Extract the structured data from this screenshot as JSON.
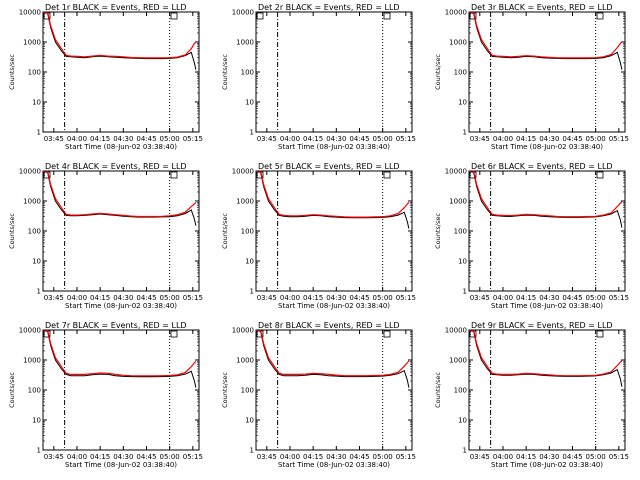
{
  "start_time_label": "Start Time (08-Jun-02 03:38:40)",
  "y_axis_label": "Counts/sec",
  "colors": {
    "events": "#000000",
    "lld": "#ff0000",
    "background": "#ffffff"
  },
  "chart_data": [
    {
      "type": "line",
      "title": "Det 1r BLACK = Events, RED = LLD",
      "xlabel": "Start Time (08-Jun-02 03:38:40)",
      "ylabel": "Counts/sec",
      "yscale": "log",
      "ylim": [
        1,
        10000
      ],
      "xlim": [
        "03:38",
        "05:19"
      ],
      "x_ticks": [
        "03:45",
        "04:00",
        "04:15",
        "04:30",
        "04:45",
        "05:00",
        "05:15"
      ],
      "y_ticks": [
        "1",
        "10",
        "100",
        "1000",
        "10000"
      ],
      "dashed_marker_time": "03:52",
      "dotted_marker_time": "05:00",
      "times": [
        "03:38",
        "03:41",
        "03:43",
        "03:46",
        "03:50",
        "03:52",
        "03:53",
        "03:56",
        "04:00",
        "04:05",
        "04:10",
        "04:15",
        "04:20",
        "04:25",
        "04:30",
        "04:35",
        "04:40",
        "04:45",
        "04:50",
        "04:55",
        "05:00",
        "05:05",
        "05:10",
        "05:14",
        "05:16",
        "05:17"
      ],
      "series": [
        {
          "name": "Events",
          "values": [
            14000,
            9000,
            3000,
            1000,
            500,
            380,
            330,
            320,
            310,
            300,
            320,
            340,
            320,
            310,
            300,
            290,
            285,
            280,
            280,
            280,
            285,
            300,
            350,
            450,
            200,
            120
          ]
        },
        {
          "name": "LLD",
          "values": [
            15000,
            10000,
            3500,
            1200,
            600,
            420,
            360,
            340,
            330,
            320,
            340,
            360,
            340,
            330,
            320,
            305,
            300,
            295,
            295,
            295,
            300,
            315,
            370,
            600,
            900,
            1000
          ]
        }
      ]
    },
    {
      "type": "line",
      "title": "Det 2r BLACK = Events, RED = LLD",
      "xlabel": "Start Time (08-Jun-02 03:38:40)",
      "ylabel": "Counts/sec",
      "yscale": "log",
      "ylim": [
        1,
        10000
      ],
      "xlim": [
        "03:38",
        "05:19"
      ],
      "x_ticks": [
        "03:45",
        "04:00",
        "04:15",
        "04:30",
        "04:45",
        "05:00",
        "05:15"
      ],
      "y_ticks": [
        "1",
        "10",
        "100",
        "1000",
        "10000"
      ],
      "dashed_marker_time": "03:52",
      "dotted_marker_time": "05:00",
      "times": [],
      "series": [
        {
          "name": "Events",
          "values": []
        },
        {
          "name": "LLD",
          "values": []
        }
      ]
    },
    {
      "type": "line",
      "title": "Det 3r BLACK = Events, RED = LLD",
      "xlabel": "Start Time (08-Jun-02 03:38:40)",
      "ylabel": "Counts/sec",
      "yscale": "log",
      "ylim": [
        1,
        10000
      ],
      "xlim": [
        "03:38",
        "05:19"
      ],
      "x_ticks": [
        "03:45",
        "04:00",
        "04:15",
        "04:30",
        "04:45",
        "05:00",
        "05:15"
      ],
      "y_ticks": [
        "1",
        "10",
        "100",
        "1000",
        "10000"
      ],
      "dashed_marker_time": "03:52",
      "dotted_marker_time": "05:00",
      "times": [
        "03:38",
        "03:41",
        "03:43",
        "03:46",
        "03:50",
        "03:52",
        "03:53",
        "03:56",
        "04:00",
        "04:05",
        "04:10",
        "04:15",
        "04:20",
        "04:25",
        "04:30",
        "04:35",
        "04:40",
        "04:45",
        "04:50",
        "04:55",
        "05:00",
        "05:05",
        "05:10",
        "05:14",
        "05:16",
        "05:17"
      ],
      "series": [
        {
          "name": "Events",
          "values": [
            14000,
            9000,
            3000,
            1000,
            500,
            380,
            330,
            320,
            310,
            300,
            310,
            330,
            320,
            300,
            290,
            285,
            280,
            280,
            280,
            280,
            285,
            300,
            350,
            450,
            200,
            120
          ]
        },
        {
          "name": "LLD",
          "values": [
            15000,
            10000,
            3500,
            1200,
            600,
            420,
            360,
            340,
            330,
            320,
            330,
            350,
            340,
            320,
            310,
            300,
            295,
            295,
            295,
            295,
            300,
            320,
            380,
            650,
            900,
            1000
          ]
        }
      ]
    },
    {
      "type": "line",
      "title": "Det 4r BLACK = Events, RED = LLD",
      "xlabel": "Start Time (08-Jun-02 03:38:40)",
      "ylabel": "Counts/sec",
      "yscale": "log",
      "ylim": [
        1,
        10000
      ],
      "xlim": [
        "03:38",
        "05:19"
      ],
      "x_ticks": [
        "03:45",
        "04:00",
        "04:15",
        "04:30",
        "04:45",
        "05:00",
        "05:15"
      ],
      "y_ticks": [
        "1",
        "10",
        "100",
        "1000",
        "10000"
      ],
      "dashed_marker_time": "03:52",
      "dotted_marker_time": "05:00",
      "times": [
        "03:38",
        "03:41",
        "03:43",
        "03:46",
        "03:50",
        "03:52",
        "03:53",
        "03:56",
        "04:00",
        "04:05",
        "04:10",
        "04:15",
        "04:20",
        "04:25",
        "04:30",
        "04:35",
        "04:40",
        "04:45",
        "04:50",
        "04:55",
        "05:00",
        "05:05",
        "05:10",
        "05:14",
        "05:16",
        "05:17"
      ],
      "series": [
        {
          "name": "Events",
          "values": [
            14000,
            9000,
            3000,
            1000,
            500,
            380,
            330,
            320,
            320,
            330,
            350,
            370,
            350,
            330,
            310,
            300,
            290,
            290,
            290,
            295,
            300,
            320,
            380,
            500,
            250,
            150
          ]
        },
        {
          "name": "LLD",
          "values": [
            15000,
            10000,
            3500,
            1200,
            600,
            420,
            360,
            340,
            340,
            350,
            370,
            390,
            370,
            350,
            330,
            315,
            305,
            305,
            305,
            310,
            320,
            350,
            420,
            650,
            800,
            900
          ]
        }
      ]
    },
    {
      "type": "line",
      "title": "Det 5r BLACK = Events, RED = LLD",
      "xlabel": "Start Time (08-Jun-02 03:38:40)",
      "ylabel": "Counts/sec",
      "yscale": "log",
      "ylim": [
        1,
        10000
      ],
      "xlim": [
        "03:38",
        "05:19"
      ],
      "x_ticks": [
        "03:45",
        "04:00",
        "04:15",
        "04:30",
        "04:45",
        "05:00",
        "05:15"
      ],
      "y_ticks": [
        "1",
        "10",
        "100",
        "1000",
        "10000"
      ],
      "dashed_marker_time": "03:52",
      "dotted_marker_time": "05:00",
      "times": [
        "03:38",
        "03:41",
        "03:43",
        "03:46",
        "03:50",
        "03:52",
        "03:53",
        "03:56",
        "04:00",
        "04:05",
        "04:10",
        "04:15",
        "04:20",
        "04:25",
        "04:30",
        "04:35",
        "04:40",
        "04:45",
        "04:50",
        "04:55",
        "05:00",
        "05:05",
        "05:10",
        "05:14",
        "05:16",
        "05:17"
      ],
      "series": [
        {
          "name": "Events",
          "values": [
            14000,
            9000,
            3000,
            1000,
            500,
            380,
            330,
            310,
            300,
            300,
            310,
            330,
            320,
            300,
            290,
            280,
            275,
            275,
            275,
            280,
            285,
            300,
            340,
            420,
            200,
            120
          ]
        },
        {
          "name": "LLD",
          "values": [
            15000,
            10000,
            3500,
            1200,
            600,
            420,
            360,
            330,
            320,
            320,
            330,
            350,
            340,
            320,
            310,
            295,
            290,
            290,
            290,
            295,
            300,
            320,
            380,
            600,
            800,
            900
          ]
        }
      ]
    },
    {
      "type": "line",
      "title": "Det 6r BLACK = Events, RED = LLD",
      "xlabel": "Start Time (08-Jun-02 03:38:40)",
      "ylabel": "Counts/sec",
      "yscale": "log",
      "ylim": [
        1,
        10000
      ],
      "xlim": [
        "03:38",
        "05:19"
      ],
      "x_ticks": [
        "03:45",
        "04:00",
        "04:15",
        "04:30",
        "04:45",
        "05:00",
        "05:15"
      ],
      "y_ticks": [
        "1",
        "10",
        "100",
        "1000",
        "10000"
      ],
      "dashed_marker_time": "03:52",
      "dotted_marker_time": "05:00",
      "times": [
        "03:38",
        "03:41",
        "03:43",
        "03:46",
        "03:50",
        "03:52",
        "03:53",
        "03:56",
        "04:00",
        "04:05",
        "04:10",
        "04:15",
        "04:20",
        "04:25",
        "04:30",
        "04:35",
        "04:40",
        "04:45",
        "04:50",
        "04:55",
        "05:00",
        "05:05",
        "05:10",
        "05:14",
        "05:16",
        "05:17"
      ],
      "series": [
        {
          "name": "Events",
          "values": [
            14000,
            9000,
            3000,
            1000,
            500,
            380,
            330,
            320,
            310,
            305,
            320,
            340,
            330,
            310,
            300,
            290,
            285,
            285,
            285,
            290,
            295,
            320,
            370,
            480,
            230,
            130
          ]
        },
        {
          "name": "LLD",
          "values": [
            15000,
            10000,
            3500,
            1200,
            600,
            420,
            360,
            340,
            330,
            325,
            340,
            360,
            350,
            330,
            320,
            305,
            300,
            300,
            300,
            305,
            310,
            340,
            400,
            650,
            850,
            950
          ]
        }
      ]
    },
    {
      "type": "line",
      "title": "Det 7r BLACK = Events, RED = LLD",
      "xlabel": "Start Time (08-Jun-02 03:38:40)",
      "ylabel": "Counts/sec",
      "yscale": "log",
      "ylim": [
        1,
        10000
      ],
      "xlim": [
        "03:38",
        "05:19"
      ],
      "x_ticks": [
        "03:45",
        "04:00",
        "04:15",
        "04:30",
        "04:45",
        "05:00",
        "05:15"
      ],
      "y_ticks": [
        "1",
        "10",
        "100",
        "1000",
        "10000"
      ],
      "dashed_marker_time": "03:52",
      "dotted_marker_time": "05:00",
      "times": [
        "03:38",
        "03:41",
        "03:43",
        "03:46",
        "03:50",
        "03:52",
        "03:53",
        "03:56",
        "04:00",
        "04:05",
        "04:10",
        "04:15",
        "04:20",
        "04:25",
        "04:30",
        "04:35",
        "04:40",
        "04:45",
        "04:50",
        "04:55",
        "05:00",
        "05:05",
        "05:10",
        "05:14",
        "05:16",
        "05:17"
      ],
      "series": [
        {
          "name": "Events",
          "values": [
            14000,
            9000,
            3000,
            1000,
            500,
            380,
            330,
            300,
            300,
            300,
            320,
            340,
            330,
            300,
            285,
            280,
            275,
            275,
            275,
            280,
            285,
            300,
            340,
            420,
            200,
            120
          ]
        },
        {
          "name": "LLD",
          "values": [
            15000,
            10000,
            3500,
            1200,
            600,
            420,
            360,
            330,
            330,
            330,
            350,
            370,
            360,
            330,
            310,
            300,
            295,
            295,
            295,
            300,
            305,
            320,
            380,
            600,
            800,
            900
          ]
        }
      ]
    },
    {
      "type": "line",
      "title": "Det 8r BLACK = Events, RED = LLD",
      "xlabel": "Start Time (08-Jun-02 03:38:40)",
      "ylabel": "Counts/sec",
      "yscale": "log",
      "ylim": [
        1,
        10000
      ],
      "xlim": [
        "03:38",
        "05:19"
      ],
      "x_ticks": [
        "03:45",
        "04:00",
        "04:15",
        "04:30",
        "04:45",
        "05:00",
        "05:15"
      ],
      "y_ticks": [
        "1",
        "10",
        "100",
        "1000",
        "10000"
      ],
      "dashed_marker_time": "03:52",
      "dotted_marker_time": "05:00",
      "times": [
        "03:38",
        "03:41",
        "03:43",
        "03:46",
        "03:50",
        "03:52",
        "03:53",
        "03:56",
        "04:00",
        "04:05",
        "04:10",
        "04:15",
        "04:20",
        "04:25",
        "04:30",
        "04:35",
        "04:40",
        "04:45",
        "04:50",
        "04:55",
        "05:00",
        "05:05",
        "05:10",
        "05:14",
        "05:16",
        "05:17"
      ],
      "series": [
        {
          "name": "Events",
          "values": [
            14000,
            9000,
            3000,
            1000,
            500,
            380,
            330,
            300,
            300,
            300,
            310,
            330,
            320,
            300,
            290,
            280,
            280,
            280,
            280,
            285,
            290,
            310,
            350,
            440,
            210,
            120
          ]
        },
        {
          "name": "LLD",
          "values": [
            15000,
            10000,
            3500,
            1200,
            600,
            420,
            360,
            330,
            330,
            330,
            340,
            360,
            350,
            330,
            315,
            300,
            300,
            300,
            300,
            305,
            310,
            330,
            390,
            620,
            820,
            920
          ]
        }
      ]
    },
    {
      "type": "line",
      "title": "Det 9r BLACK = Events, RED = LLD",
      "xlabel": "Start Time (08-Jun-02 03:38:40)",
      "ylabel": "Counts/sec",
      "yscale": "log",
      "ylim": [
        1,
        10000
      ],
      "xlim": [
        "03:38",
        "05:19"
      ],
      "x_ticks": [
        "03:45",
        "04:00",
        "04:15",
        "04:30",
        "04:45",
        "05:00",
        "05:15"
      ],
      "y_ticks": [
        "1",
        "10",
        "100",
        "1000",
        "10000"
      ],
      "dashed_marker_time": "03:52",
      "dotted_marker_time": "05:00",
      "times": [
        "03:38",
        "03:41",
        "03:43",
        "03:46",
        "03:50",
        "03:52",
        "03:53",
        "03:56",
        "04:00",
        "04:05",
        "04:10",
        "04:15",
        "04:20",
        "04:25",
        "04:30",
        "04:35",
        "04:40",
        "04:45",
        "04:50",
        "04:55",
        "05:00",
        "05:05",
        "05:10",
        "05:14",
        "05:16",
        "05:17"
      ],
      "series": [
        {
          "name": "Events",
          "values": [
            14000,
            9000,
            3000,
            1000,
            500,
            380,
            330,
            320,
            310,
            310,
            320,
            340,
            330,
            310,
            300,
            290,
            285,
            285,
            285,
            290,
            295,
            320,
            370,
            480,
            230,
            130
          ]
        },
        {
          "name": "LLD",
          "values": [
            15000,
            10000,
            3500,
            1200,
            600,
            420,
            360,
            340,
            330,
            330,
            340,
            360,
            350,
            330,
            320,
            305,
            300,
            300,
            300,
            305,
            310,
            340,
            400,
            650,
            850,
            950
          ]
        }
      ]
    }
  ]
}
